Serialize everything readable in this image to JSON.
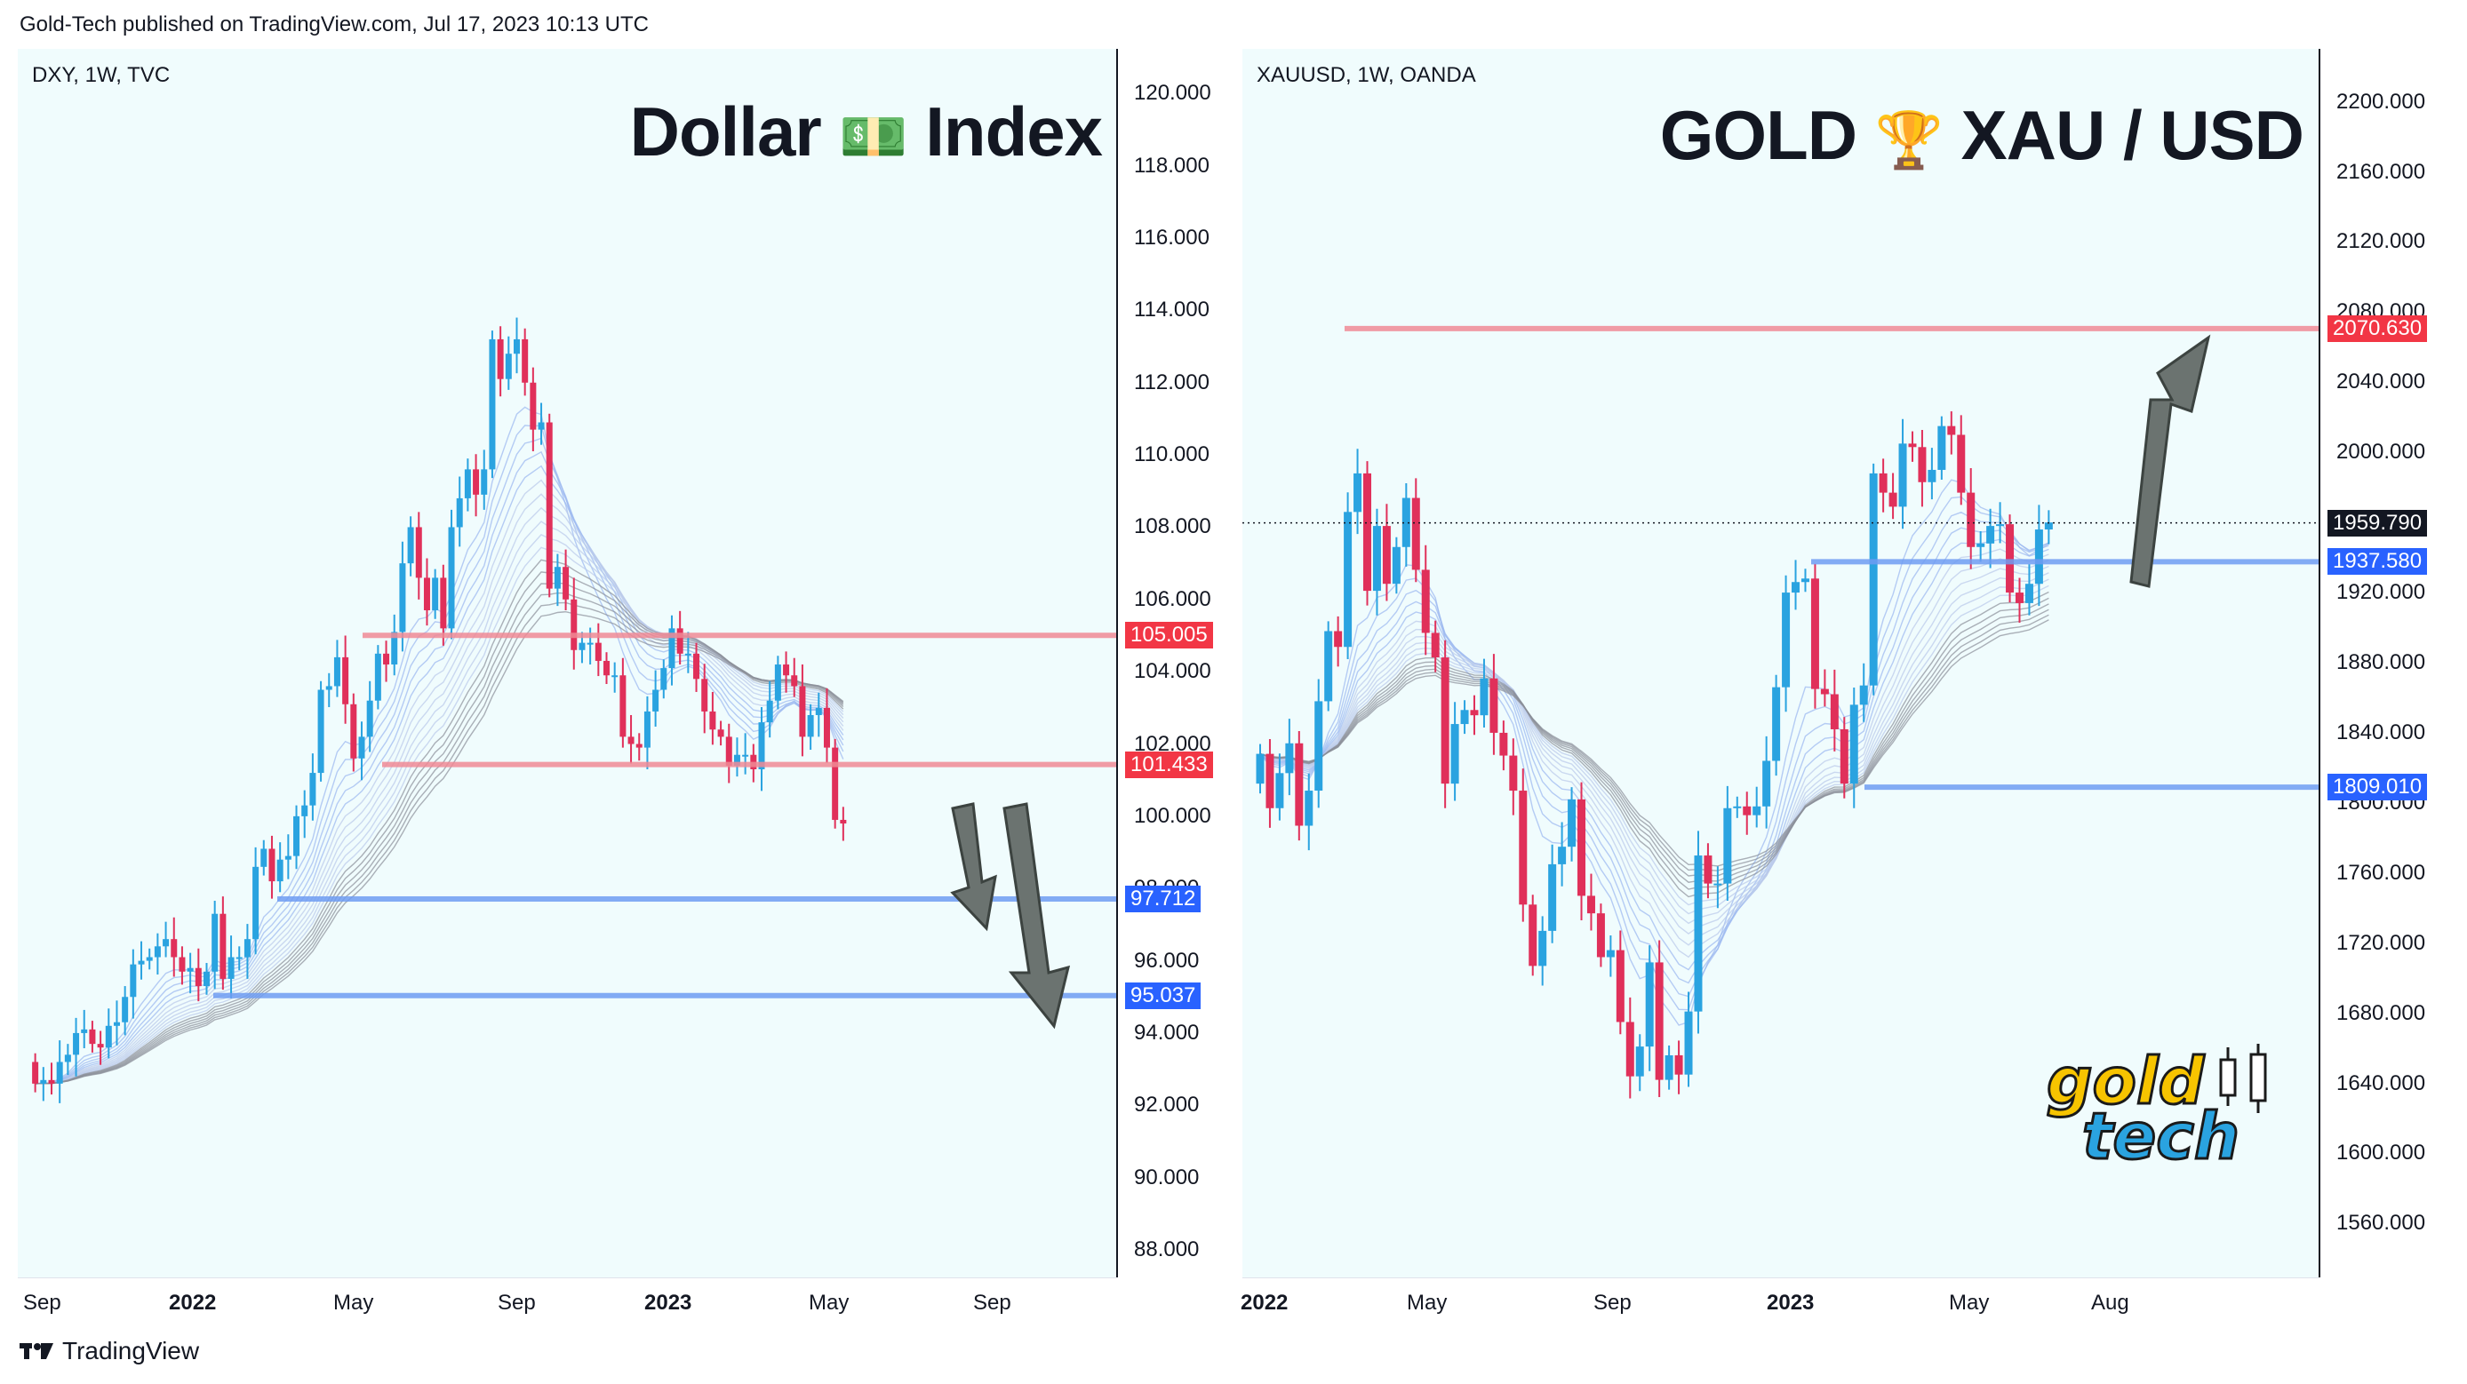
{
  "header": {
    "publisher": "Gold-Tech published on TradingView.com, Jul 17, 2023 10:13 UTC"
  },
  "footer": {
    "brand": "TradingView"
  },
  "left_panel": {
    "symbol": "DXY, 1W, TVC",
    "title_pre": "Dollar",
    "title_emoji": "💵",
    "title_post": "Index",
    "y_labels": [
      "120.000",
      "118.000",
      "116.000",
      "114.000",
      "112.000",
      "110.000",
      "108.000",
      "106.000",
      "104.000",
      "102.000",
      "100.000",
      "98.000",
      "96.000",
      "94.000",
      "92.000",
      "90.000",
      "88.000"
    ],
    "x_labels": [
      {
        "text": "Sep",
        "bold": false
      },
      {
        "text": "2022",
        "bold": true
      },
      {
        "text": "May",
        "bold": false
      },
      {
        "text": "Sep",
        "bold": false
      },
      {
        "text": "2023",
        "bold": true
      },
      {
        "text": "May",
        "bold": false
      },
      {
        "text": "Sep",
        "bold": false
      }
    ],
    "levels": [
      {
        "value": "105.005",
        "kind": "resistance"
      },
      {
        "value": "101.433",
        "kind": "resistance"
      },
      {
        "value": "97.712",
        "kind": "support"
      },
      {
        "value": "95.037",
        "kind": "support"
      }
    ]
  },
  "right_panel": {
    "symbol": "XAUUSD, 1W, OANDA",
    "title_pre": "GOLD",
    "title_emoji": "🏆",
    "title_post": "XAU / USD",
    "y_labels": [
      "2200.000",
      "2160.000",
      "2120.000",
      "2080.000",
      "2040.000",
      "2000.000",
      "1960.000",
      "1920.000",
      "1880.000",
      "1840.000",
      "1800.000",
      "1760.000",
      "1720.000",
      "1680.000",
      "1640.000",
      "1600.000",
      "1560.000"
    ],
    "x_labels": [
      {
        "text": "2022",
        "bold": true
      },
      {
        "text": "May",
        "bold": false
      },
      {
        "text": "Sep",
        "bold": false
      },
      {
        "text": "2023",
        "bold": true
      },
      {
        "text": "May",
        "bold": false
      },
      {
        "text": "Aug",
        "bold": false
      }
    ],
    "levels": [
      {
        "value": "2070.630",
        "kind": "resistance"
      },
      {
        "value": "1959.790",
        "kind": "last"
      },
      {
        "value": "1937.580",
        "kind": "support"
      },
      {
        "value": "1809.010",
        "kind": "support"
      }
    ],
    "logo_line1": "gold",
    "logo_line2": "tech"
  },
  "colors": {
    "up": "#2aa3e0",
    "down": "#e0305a",
    "resistance": "#f08a95",
    "support": "#6f9cf2",
    "tag_red": "#f23645",
    "tag_blue": "#2962ff",
    "tag_black": "#131722",
    "arrow": "#6b7370"
  },
  "chart_data": [
    {
      "type": "candlestick",
      "title": "DXY, 1W, TVC",
      "ylim": [
        88,
        120.5
      ],
      "x": [
        "2021-08-23",
        "2021-08-30",
        "2021-09-06",
        "2021-09-13",
        "2021-09-20",
        "2021-09-27",
        "2021-10-04",
        "2021-10-11",
        "2021-10-18",
        "2021-10-25",
        "2021-11-01",
        "2021-11-08",
        "2021-11-15",
        "2021-11-22",
        "2021-11-29",
        "2021-12-06",
        "2021-12-13",
        "2021-12-20",
        "2021-12-27",
        "2022-01-03",
        "2022-01-10",
        "2022-01-17",
        "2022-01-24",
        "2022-01-31",
        "2022-02-07",
        "2022-02-14",
        "2022-02-21",
        "2022-02-28",
        "2022-03-07",
        "2022-03-14",
        "2022-03-21",
        "2022-03-28",
        "2022-04-04",
        "2022-04-11",
        "2022-04-18",
        "2022-04-25",
        "2022-05-02",
        "2022-05-09",
        "2022-05-16",
        "2022-05-23",
        "2022-05-30",
        "2022-06-06",
        "2022-06-13",
        "2022-06-20",
        "2022-06-27",
        "2022-07-04",
        "2022-07-11",
        "2022-07-18",
        "2022-07-25",
        "2022-08-01",
        "2022-08-08",
        "2022-08-15",
        "2022-08-22",
        "2022-08-29",
        "2022-09-05",
        "2022-09-12",
        "2022-09-19",
        "2022-09-26",
        "2022-10-03",
        "2022-10-10",
        "2022-10-17",
        "2022-10-24",
        "2022-10-31",
        "2022-11-07",
        "2022-11-14",
        "2022-11-21",
        "2022-11-28",
        "2022-12-05",
        "2022-12-12",
        "2022-12-19",
        "2022-12-26",
        "2023-01-02",
        "2023-01-09",
        "2023-01-16",
        "2023-01-23",
        "2023-01-30",
        "2023-02-06",
        "2023-02-13",
        "2023-02-20",
        "2023-02-27",
        "2023-03-06",
        "2023-03-13",
        "2023-03-20",
        "2023-03-27",
        "2023-04-03",
        "2023-04-10",
        "2023-04-17",
        "2023-04-24",
        "2023-05-01",
        "2023-05-08",
        "2023-05-15",
        "2023-05-22",
        "2023-05-29",
        "2023-06-05",
        "2023-06-12",
        "2023-06-19",
        "2023-06-26",
        "2023-07-03",
        "2023-07-10",
        "2023-07-17"
      ],
      "open": [
        93.2,
        92.6,
        92.7,
        92.6,
        93.2,
        93.4,
        94.0,
        94.1,
        93.7,
        93.6,
        94.2,
        94.3,
        95.0,
        95.9,
        96.0,
        96.1,
        96.4,
        96.6,
        96.1,
        95.7,
        95.8,
        95.3,
        95.7,
        97.3,
        95.5,
        96.1,
        96.1,
        96.6,
        98.6,
        99.1,
        98.2,
        98.8,
        98.9,
        100.0,
        100.3,
        101.2,
        103.5,
        103.6,
        104.4,
        103.1,
        101.6,
        102.2,
        103.2,
        104.5,
        104.2,
        105.1,
        107.0,
        108.0,
        106.6,
        105.7,
        106.6,
        105.2,
        108.0,
        108.8,
        109.6,
        108.9,
        109.6,
        113.2,
        112.1,
        112.8,
        113.2,
        112.0,
        110.7,
        110.9,
        106.3,
        106.9,
        106.0,
        104.6,
        104.8,
        104.8,
        104.3,
        103.9,
        103.9,
        102.2,
        102.0,
        101.9,
        102.9,
        103.5,
        104.1,
        105.2,
        104.5,
        104.5,
        103.8,
        102.9,
        102.4,
        102.2,
        101.4,
        101.7,
        101.7,
        101.3,
        102.6,
        103.2,
        104.2,
        103.9,
        103.6,
        102.2,
        102.8,
        103.0,
        101.9,
        99.9
      ],
      "close": [
        92.6,
        92.7,
        92.6,
        93.2,
        93.4,
        94.0,
        94.1,
        93.7,
        93.6,
        94.2,
        94.3,
        95.0,
        95.9,
        96.0,
        96.1,
        96.4,
        96.6,
        96.1,
        95.7,
        95.8,
        95.3,
        95.7,
        97.3,
        95.5,
        96.1,
        96.1,
        96.6,
        98.6,
        99.1,
        98.2,
        98.8,
        98.9,
        100.0,
        100.3,
        101.2,
        103.5,
        103.6,
        104.4,
        103.1,
        101.6,
        102.2,
        103.2,
        104.5,
        104.2,
        105.1,
        107.0,
        108.0,
        106.6,
        105.7,
        106.6,
        105.2,
        108.0,
        108.8,
        109.6,
        108.9,
        109.6,
        113.2,
        112.1,
        112.8,
        113.2,
        112.0,
        110.7,
        110.9,
        106.3,
        106.9,
        106.0,
        104.6,
        104.8,
        104.8,
        104.3,
        103.9,
        103.9,
        102.2,
        102.0,
        101.9,
        102.9,
        103.5,
        104.1,
        105.2,
        104.5,
        104.5,
        103.8,
        102.9,
        102.4,
        102.2,
        101.4,
        101.7,
        101.7,
        101.3,
        102.6,
        103.2,
        104.2,
        103.9,
        103.6,
        102.2,
        102.8,
        103.0,
        101.9,
        99.9,
        99.8
      ]
    },
    {
      "type": "candlestick",
      "title": "XAUUSD, 1W, OANDA",
      "ylim": [
        1545,
        2215
      ],
      "x": [
        "2021-12-27",
        "2022-01-03",
        "2022-01-10",
        "2022-01-17",
        "2022-01-24",
        "2022-01-31",
        "2022-02-07",
        "2022-02-14",
        "2022-02-21",
        "2022-02-28",
        "2022-03-07",
        "2022-03-14",
        "2022-03-21",
        "2022-03-28",
        "2022-04-04",
        "2022-04-11",
        "2022-04-18",
        "2022-04-25",
        "2022-05-02",
        "2022-05-09",
        "2022-05-16",
        "2022-05-23",
        "2022-05-30",
        "2022-06-06",
        "2022-06-13",
        "2022-06-20",
        "2022-06-27",
        "2022-07-04",
        "2022-07-11",
        "2022-07-18",
        "2022-07-25",
        "2022-08-01",
        "2022-08-08",
        "2022-08-15",
        "2022-08-22",
        "2022-08-29",
        "2022-09-05",
        "2022-09-12",
        "2022-09-19",
        "2022-09-26",
        "2022-10-03",
        "2022-10-10",
        "2022-10-17",
        "2022-10-24",
        "2022-10-31",
        "2022-11-07",
        "2022-11-14",
        "2022-11-21",
        "2022-11-28",
        "2022-12-05",
        "2022-12-12",
        "2022-12-19",
        "2022-12-26",
        "2023-01-02",
        "2023-01-09",
        "2023-01-16",
        "2023-01-23",
        "2023-01-30",
        "2023-02-06",
        "2023-02-13",
        "2023-02-20",
        "2023-02-27",
        "2023-03-06",
        "2023-03-13",
        "2023-03-20",
        "2023-03-27",
        "2023-04-03",
        "2023-04-10",
        "2023-04-17",
        "2023-04-24",
        "2023-05-01",
        "2023-05-08",
        "2023-05-15",
        "2023-05-22",
        "2023-05-29",
        "2023-06-05",
        "2023-06-12",
        "2023-06-19",
        "2023-06-26",
        "2023-07-03",
        "2023-07-10",
        "2023-07-17"
      ],
      "open": [
        1811,
        1828,
        1797,
        1817,
        1834,
        1787,
        1807,
        1858,
        1898,
        1889,
        1966,
        1988,
        1921,
        1958,
        1925,
        1946,
        1974,
        1933,
        1897,
        1883,
        1811,
        1845,
        1853,
        1850,
        1871,
        1840,
        1827,
        1807,
        1742,
        1707,
        1727,
        1765,
        1775,
        1802,
        1747,
        1737,
        1712,
        1716,
        1675,
        1644,
        1661,
        1709,
        1642,
        1656,
        1645,
        1681,
        1770,
        1754,
        1754,
        1797,
        1798,
        1793,
        1798,
        1824,
        1866,
        1920,
        1926,
        1928,
        1865,
        1862,
        1842,
        1811,
        1856,
        1867,
        1988,
        1977,
        1969,
        2005,
        2003,
        1983,
        1990,
        2015,
        2010,
        1977,
        1946,
        1948,
        1958,
        1959,
        1920,
        1914,
        1925,
        1956
      ],
      "close": [
        1828,
        1797,
        1817,
        1834,
        1787,
        1807,
        1858,
        1898,
        1889,
        1966,
        1988,
        1921,
        1958,
        1925,
        1946,
        1974,
        1933,
        1897,
        1883,
        1811,
        1845,
        1853,
        1850,
        1871,
        1840,
        1827,
        1807,
        1742,
        1707,
        1727,
        1765,
        1775,
        1802,
        1747,
        1737,
        1712,
        1716,
        1675,
        1644,
        1661,
        1709,
        1642,
        1656,
        1645,
        1681,
        1770,
        1754,
        1754,
        1797,
        1798,
        1793,
        1798,
        1824,
        1866,
        1920,
        1926,
        1928,
        1865,
        1862,
        1842,
        1811,
        1856,
        1867,
        1988,
        1977,
        1969,
        2005,
        2003,
        1983,
        1990,
        2015,
        2010,
        1977,
        1946,
        1948,
        1958,
        1959,
        1920,
        1914,
        1925,
        1956,
        1960
      ]
    }
  ]
}
